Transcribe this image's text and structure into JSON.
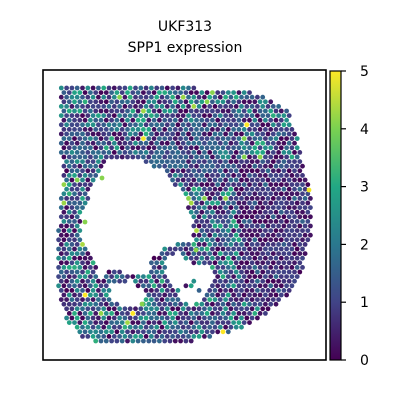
{
  "chart_data": {
    "type": "scatter",
    "title_line1": "UKF313",
    "title_line2": "SPP1 expression",
    "xlabel": "",
    "ylabel": "",
    "colorbar": {
      "colormap": "viridis",
      "vmin": 0,
      "vmax": 5,
      "ticks": [
        "0",
        "1",
        "2",
        "3",
        "4",
        "5"
      ]
    },
    "colormap_stops": [
      "#440154",
      "#414487",
      "#2a788e",
      "#22a884",
      "#7ad151",
      "#fde725"
    ],
    "spot_color_mix": [
      {
        "value": 0.2,
        "share": 0.22
      },
      {
        "value": 0.9,
        "share": 0.28
      },
      {
        "value": 1.6,
        "share": 0.22
      },
      {
        "value": 2.4,
        "share": 0.16
      },
      {
        "value": 3.0,
        "share": 0.09
      },
      {
        "value": 4.2,
        "share": 0.025
      },
      {
        "value": 5.0,
        "share": 0.005
      }
    ],
    "grid": false,
    "legend": "colorbar-right"
  }
}
